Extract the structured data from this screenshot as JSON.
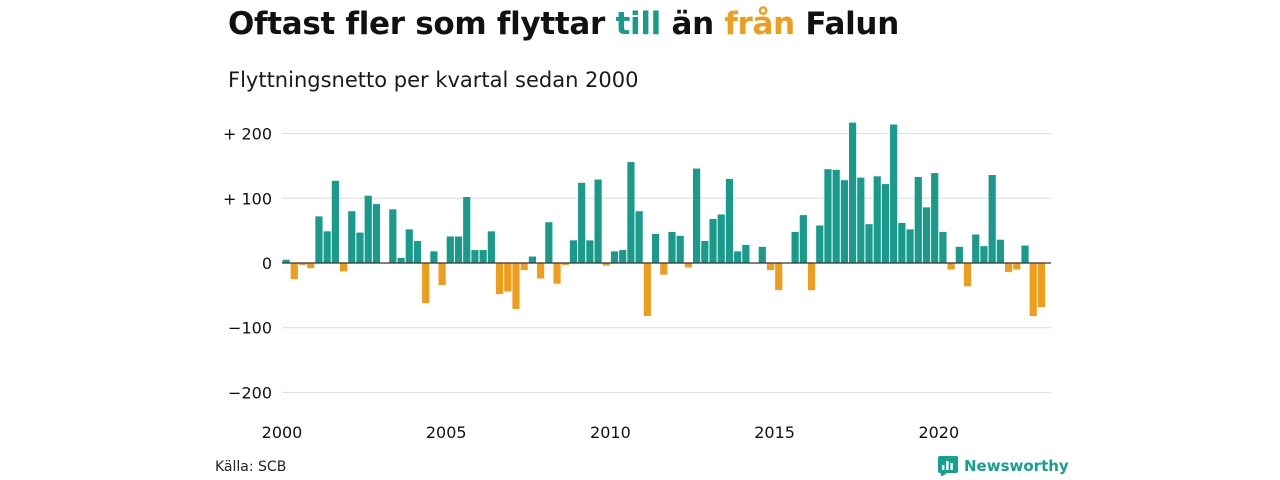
{
  "title": {
    "part1": "Oftast fler som flyttar ",
    "highlight_in": "till",
    "part2": " än ",
    "highlight_out": "från",
    "part3": " Falun"
  },
  "subtitle": "Flyttningsnetto per kvartal sedan 2000",
  "source": "Källa: SCB",
  "brand": {
    "name": "Newsworthy",
    "icon": "newsworthy-logo-icon"
  },
  "colors": {
    "positive": "#1a9a8b",
    "negative": "#f09d1e",
    "grid": "#dcdcdc",
    "zero_line": "#333333"
  },
  "chart_data": {
    "type": "bar",
    "title": "Oftast fler som flyttar till än från Falun",
    "subtitle": "Flyttningsnetto per kvartal sedan 2000",
    "x_start": "2000-Q1",
    "x_ticks": [
      "2000",
      "2005",
      "2010",
      "2015",
      "2020"
    ],
    "y_ticks": [
      {
        "value": 200,
        "label": "+ 200"
      },
      {
        "value": 100,
        "label": "+ 100"
      },
      {
        "value": 0,
        "label": "0"
      },
      {
        "value": -100,
        "label": "−100"
      },
      {
        "value": -200,
        "label": "−200"
      }
    ],
    "ylim": [
      -220,
      215
    ],
    "grid": true,
    "values": [
      5,
      -25,
      -3,
      -8,
      72,
      49,
      127,
      -13,
      80,
      47,
      104,
      91,
      0,
      83,
      8,
      52,
      34,
      -62,
      18,
      -34,
      41,
      41,
      102,
      20,
      20,
      49,
      -48,
      -44,
      -71,
      -11,
      10,
      -24,
      63,
      -32,
      -3,
      35,
      124,
      35,
      129,
      -4,
      18,
      20,
      156,
      80,
      -82,
      45,
      -18,
      48,
      42,
      -7,
      146,
      34,
      68,
      75,
      130,
      18,
      28,
      0,
      25,
      -11,
      -42,
      0,
      48,
      74,
      -42,
      58,
      145,
      144,
      128,
      217,
      132,
      60,
      134,
      122,
      214,
      62,
      52,
      133,
      86,
      139,
      48,
      -10,
      25,
      -36,
      44,
      26,
      136,
      36,
      -14,
      -10,
      27,
      -82,
      -68
    ]
  }
}
